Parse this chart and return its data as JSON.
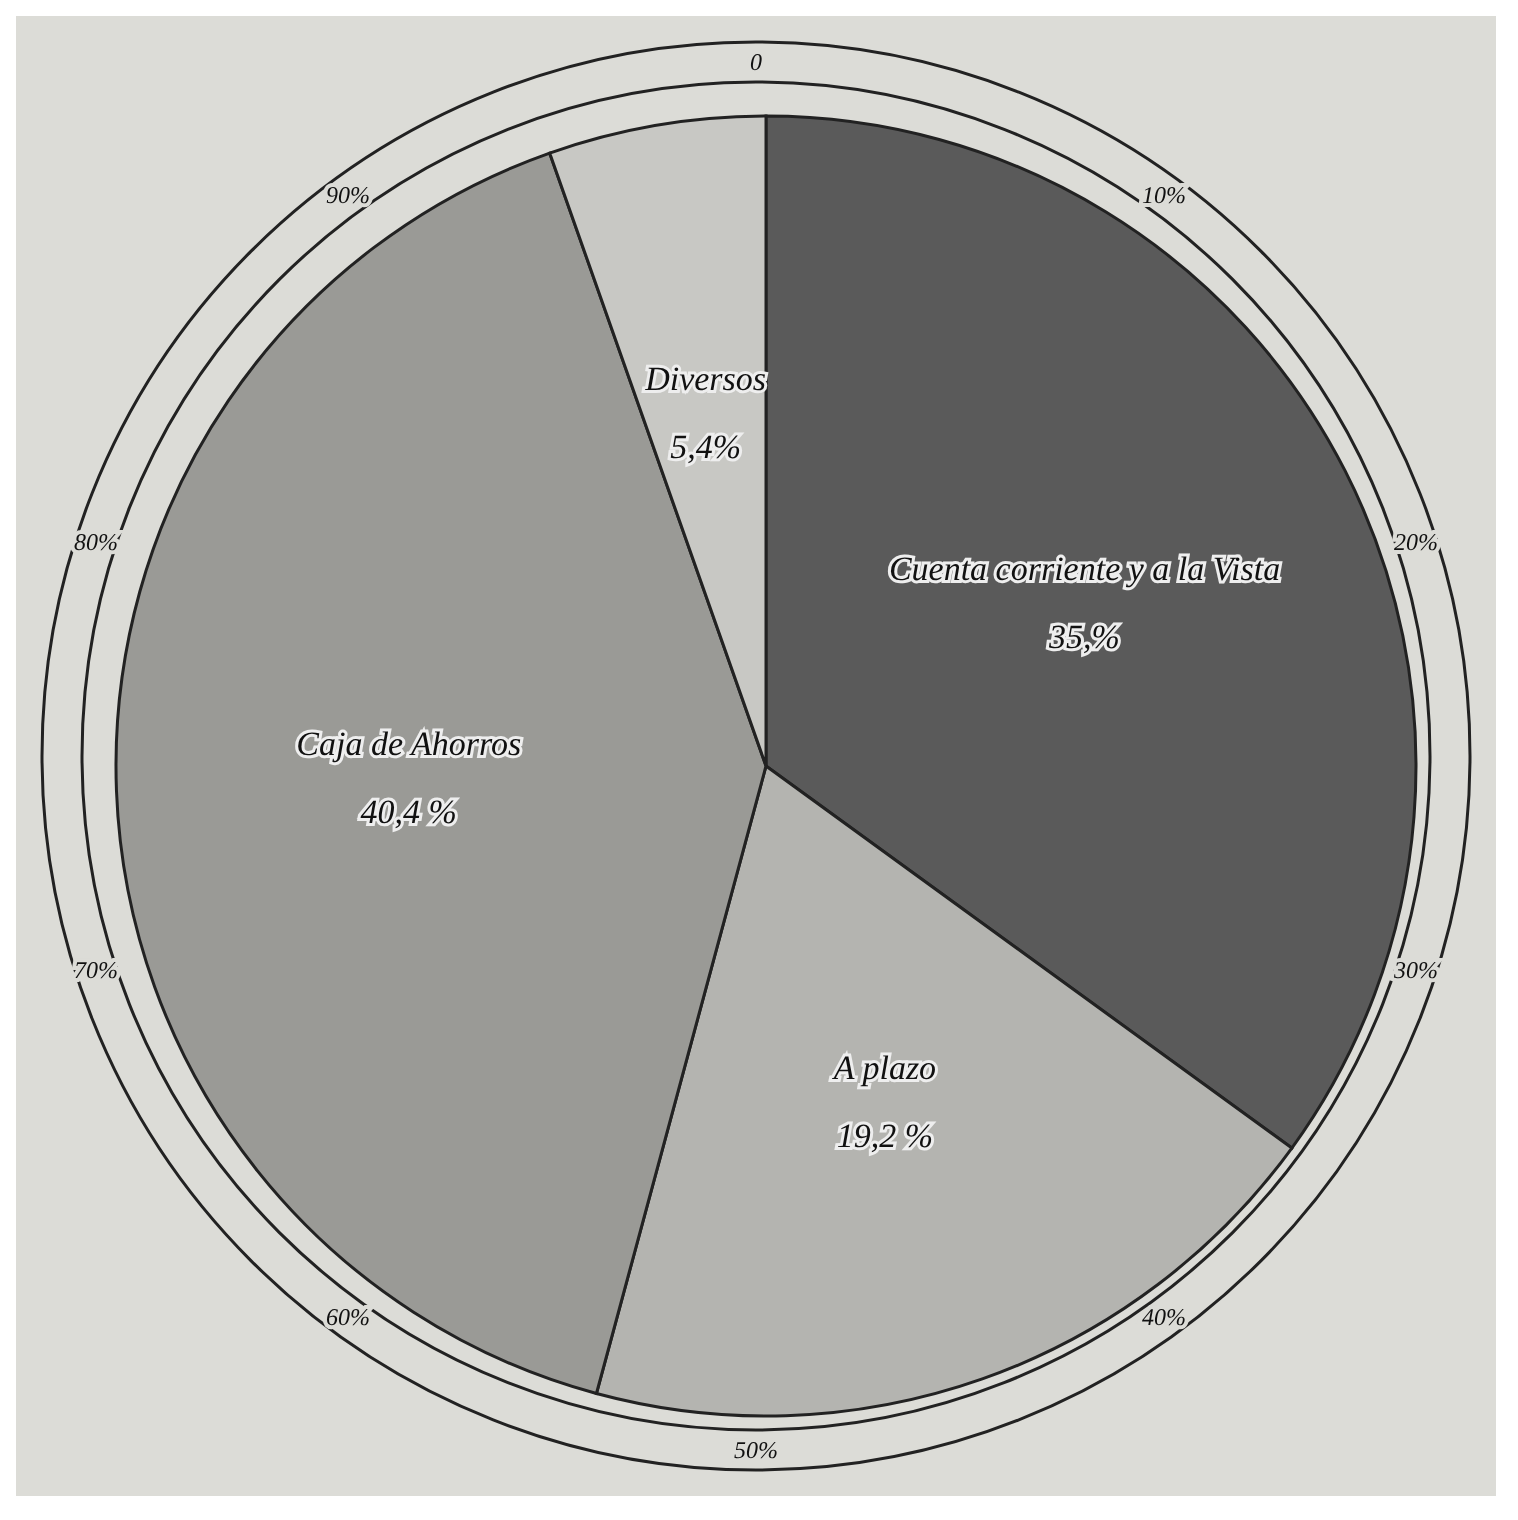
{
  "chart_data": {
    "type": "pie",
    "categories": [
      "Cuenta corriente y a la Vista",
      "A plazo",
      "Caja de Ahorros",
      "Diversos"
    ],
    "values": [
      35,
      19.2,
      40.4,
      5.4
    ],
    "colors": [
      "#5a5a5a",
      "#b4b4b0",
      "#9a9a96",
      "#c8c8c4"
    ],
    "value_labels": [
      "35,%",
      "19,2 %",
      "40,4 %",
      "5,4%"
    ],
    "annotations": [
      "0",
      "10%",
      "20%",
      "30%",
      "40%",
      "50%",
      "60%",
      "70%",
      "80%",
      "90%"
    ],
    "legend": false
  }
}
